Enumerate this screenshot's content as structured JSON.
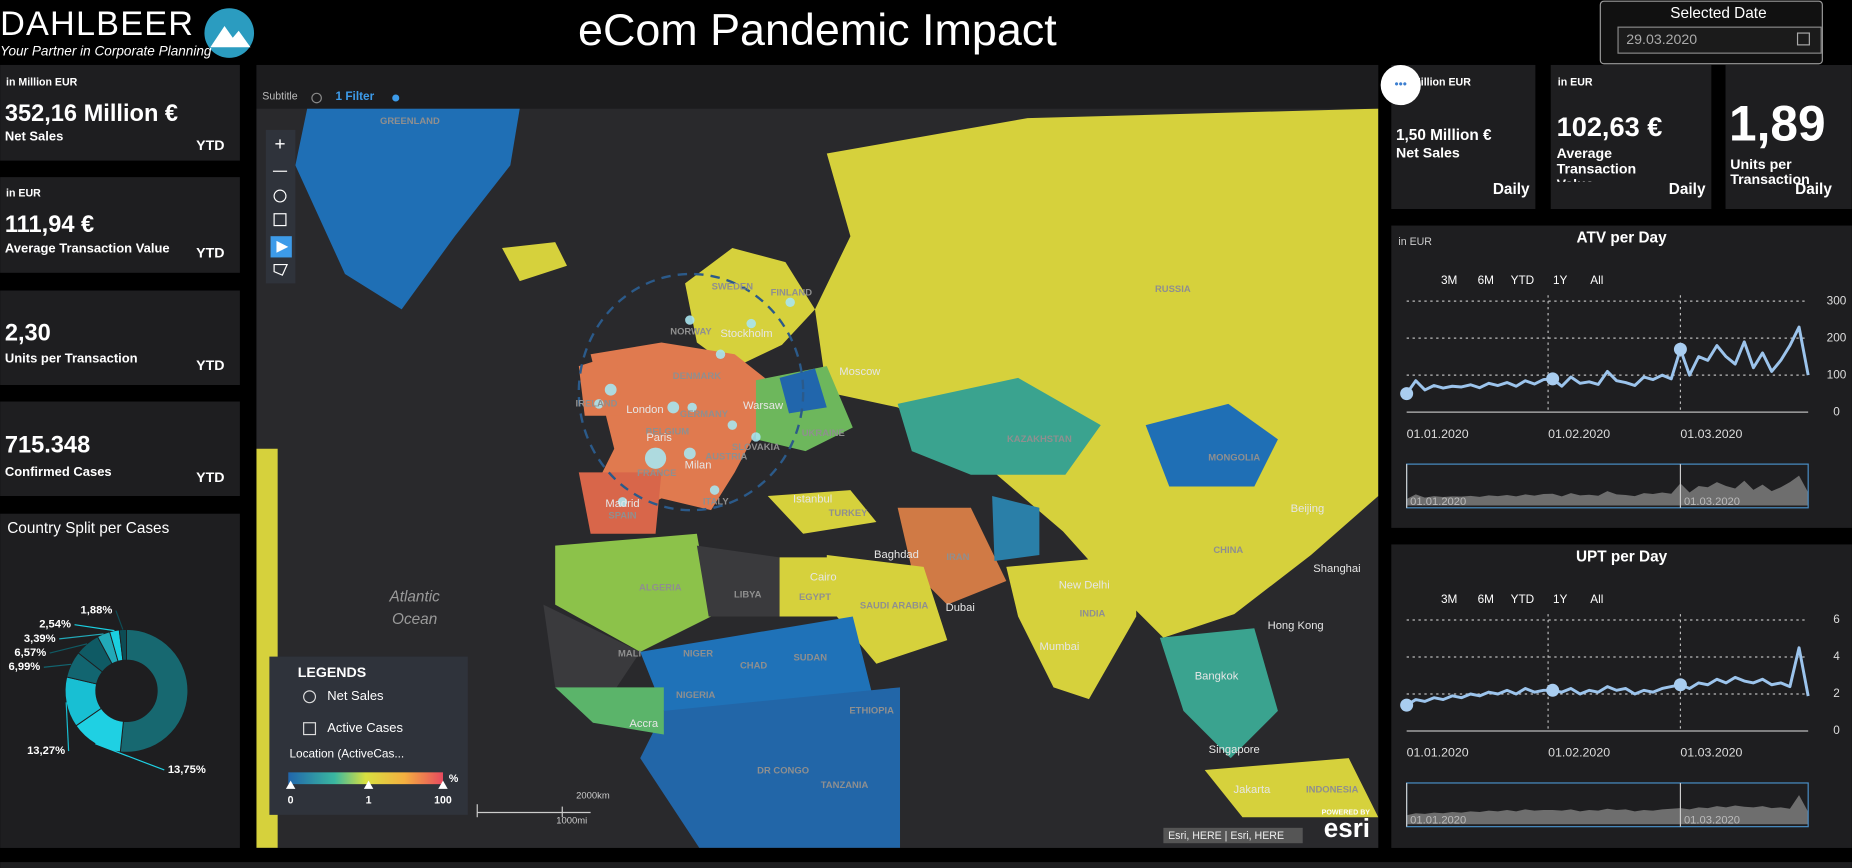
{
  "header": {
    "logo": "DAHLBEER",
    "tagline": "Your Partner in Corporate Planning",
    "title": "eCom Pandemic Impact",
    "date_label": "Selected Date",
    "date_value": "29.03.2020"
  },
  "kpis_left": [
    {
      "unit": "in Million EUR",
      "value": "352,16 Million €",
      "label": "Net Sales",
      "period": "YTD"
    },
    {
      "unit": "in EUR",
      "value": "111,94 €",
      "label": "Average Transaction Value",
      "period": "YTD"
    },
    {
      "value": "2,30",
      "label": "Units per Transaction",
      "period": "YTD"
    },
    {
      "value": "715.348",
      "label": "Confirmed Cases",
      "period": "YTD"
    }
  ],
  "kpis_right": [
    {
      "unit": "in Million EUR",
      "value": "1,50 Million €",
      "label": "Net Sales",
      "period": "Daily"
    },
    {
      "unit": "in EUR",
      "value": "102,63 €",
      "label": "Average Transaction Value",
      "period": "Daily"
    },
    {
      "value": "1,89",
      "label": "Units per Transaction",
      "period": "Daily"
    }
  ],
  "map": {
    "subtitle": "Subtitle",
    "filter": "1 Filter",
    "labels": [
      "GREENLAND",
      "SWEDEN",
      "FINLAND",
      "NORWAY",
      "Stockholm",
      "RUSSIA",
      "Moscow",
      "DENMARK",
      "IRELAND",
      "London",
      "GERMANY",
      "Warsaw",
      "BELGIUM",
      "Paris",
      "SLOVAKIA",
      "AUSTRIA",
      "FRANCE",
      "Milan",
      "UKRAINE",
      "KAZAKHSTAN",
      "MONGOLIA",
      "Madrid",
      "SPAIN",
      "ITALY",
      "Istanbul",
      "TURKEY",
      "Baghdad",
      "IRAN",
      "Beijing",
      "CHINA",
      "Shanghai",
      "ALGERIA",
      "LIBYA",
      "EGYPT",
      "Cairo",
      "SAUDI ARABIA",
      "Dubai",
      "New Delhi",
      "INDIA",
      "Mumbai",
      "MALI",
      "NIGER",
      "CHAD",
      "SUDAN",
      "NIGERIA",
      "ETHIOPIA",
      "Accra",
      "DR CONGO",
      "TANZANIA",
      "Hong Kong",
      "Bangkok",
      "Singapore",
      "Jakarta",
      "INDONESIA",
      "Atlantic",
      "Ocean"
    ],
    "legend": {
      "title": "LEGENDS",
      "layers": [
        "Net Sales",
        "Active Cases"
      ],
      "field": "Location (ActiveCas...",
      "scale_labels": [
        0,
        1,
        100
      ],
      "unit": "%"
    },
    "scalebar": [
      "2000km",
      "1000mi"
    ],
    "attribution": "Esri, HERE | Esri, HERE",
    "powered": "POWERED BY",
    "brand": "esri"
  },
  "chart_data": [
    {
      "type": "pie",
      "title": "Country Split per Cases",
      "values": [
        51.61,
        13.75,
        13.27,
        6.99,
        6.57,
        3.39,
        2.54,
        1.88
      ],
      "value_labels": [
        null,
        "13,75%",
        "13,27%",
        "6,99%",
        "6,57%",
        "3,39%",
        "2,54%",
        "1,88%"
      ],
      "colors": [
        "#176870",
        "#1fd0e3",
        "#18bfd3",
        "#126570",
        "#0f5a64",
        "#22a9b8",
        "#1acfe0",
        "#0d4c55"
      ]
    },
    {
      "type": "line",
      "title": "ATV per Day",
      "unit": "in EUR",
      "range_buttons": [
        "3M",
        "6M",
        "YTD",
        "1Y",
        "All"
      ],
      "color": "#9cc4ec",
      "grid": true,
      "x": [
        "01.01.2020",
        "03.01.2020",
        "05.01.2020",
        "07.01.2020",
        "09.01.2020",
        "11.01.2020",
        "13.01.2020",
        "15.01.2020",
        "17.01.2020",
        "19.01.2020",
        "21.01.2020",
        "23.01.2020",
        "25.01.2020",
        "27.01.2020",
        "29.01.2020",
        "31.01.2020",
        "02.02.2020",
        "04.02.2020",
        "06.02.2020",
        "08.02.2020",
        "10.02.2020",
        "12.02.2020",
        "14.02.2020",
        "16.02.2020",
        "18.02.2020",
        "20.02.2020",
        "22.02.2020",
        "24.02.2020",
        "26.02.2020",
        "28.02.2020",
        "01.03.2020",
        "03.03.2020",
        "05.03.2020",
        "07.03.2020",
        "09.03.2020",
        "11.03.2020",
        "13.03.2020",
        "15.03.2020",
        "17.03.2020",
        "19.03.2020",
        "21.03.2020",
        "23.03.2020",
        "25.03.2020",
        "27.03.2020",
        "29.03.2020"
      ],
      "values": [
        50,
        85,
        60,
        72,
        65,
        70,
        68,
        74,
        66,
        78,
        72,
        80,
        70,
        85,
        76,
        88,
        90,
        70,
        95,
        78,
        82,
        75,
        110,
        85,
        80,
        72,
        95,
        88,
        100,
        90,
        170,
        100,
        150,
        140,
        180,
        150,
        130,
        190,
        120,
        160,
        110,
        140,
        180,
        230,
        100
      ],
      "xlim": [
        "01.01.2020",
        "29.03.2020"
      ],
      "xticks": [
        "01.01.2020",
        "01.02.2020",
        "01.03.2020"
      ],
      "ylim": [
        0,
        300
      ],
      "yticks": [
        0,
        100,
        200,
        300
      ]
    },
    {
      "type": "line",
      "title": "UPT per Day",
      "range_buttons": [
        "3M",
        "6M",
        "YTD",
        "1Y",
        "All"
      ],
      "color": "#9cc4ec",
      "grid": true,
      "x": [
        "01.01.2020",
        "03.01.2020",
        "05.01.2020",
        "07.01.2020",
        "09.01.2020",
        "11.01.2020",
        "13.01.2020",
        "15.01.2020",
        "17.01.2020",
        "19.01.2020",
        "21.01.2020",
        "23.01.2020",
        "25.01.2020",
        "27.01.2020",
        "29.01.2020",
        "31.01.2020",
        "02.02.2020",
        "04.02.2020",
        "06.02.2020",
        "08.02.2020",
        "10.02.2020",
        "12.02.2020",
        "14.02.2020",
        "16.02.2020",
        "18.02.2020",
        "20.02.2020",
        "22.02.2020",
        "24.02.2020",
        "26.02.2020",
        "28.02.2020",
        "01.03.2020",
        "03.03.2020",
        "05.03.2020",
        "07.03.2020",
        "09.03.2020",
        "11.03.2020",
        "13.03.2020",
        "15.03.2020",
        "17.03.2020",
        "19.03.2020",
        "21.03.2020",
        "23.03.2020",
        "25.03.2020",
        "27.03.2020",
        "29.03.2020"
      ],
      "values": [
        1.4,
        1.7,
        1.6,
        1.8,
        1.7,
        1.9,
        1.8,
        2.0,
        1.9,
        2.1,
        2.0,
        2.2,
        2.0,
        2.3,
        2.1,
        2.2,
        2.2,
        2.1,
        2.3,
        2.0,
        2.2,
        2.1,
        2.4,
        2.2,
        2.3,
        2.0,
        2.2,
        2.1,
        2.3,
        2.4,
        2.5,
        2.3,
        2.6,
        2.5,
        2.8,
        2.6,
        2.9,
        2.7,
        2.6,
        2.8,
        2.5,
        2.6,
        2.4,
        4.5,
        1.89
      ],
      "xlim": [
        "01.01.2020",
        "29.03.2020"
      ],
      "xticks": [
        "01.01.2020",
        "01.02.2020",
        "01.03.2020"
      ],
      "ylim": [
        0,
        6
      ],
      "yticks": [
        0,
        2,
        4,
        6
      ]
    }
  ]
}
